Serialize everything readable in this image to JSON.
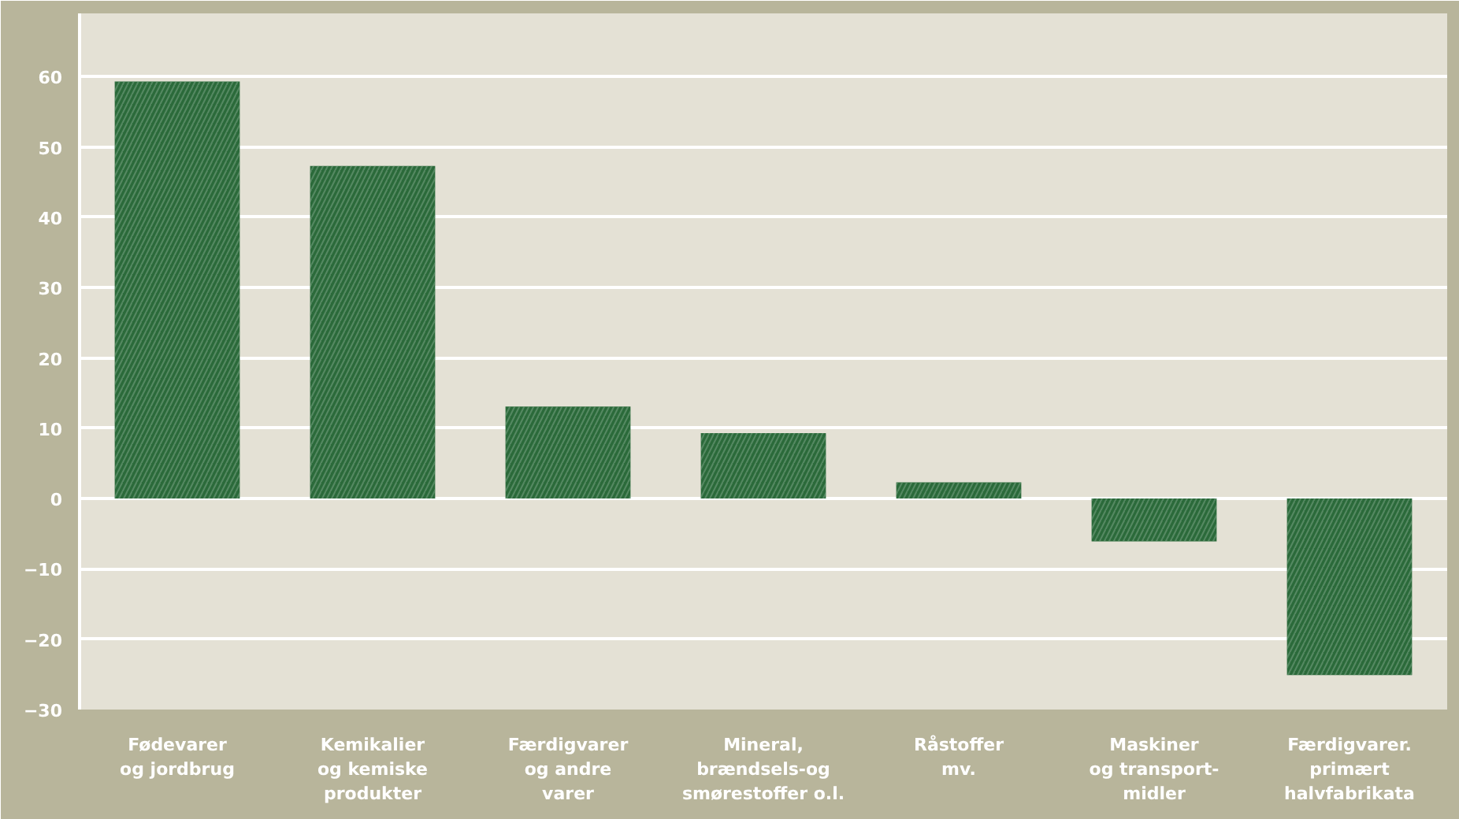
{
  "chart_data": {
    "type": "bar",
    "categories": [
      "Fødevarer\nog jordbrug",
      "Kemikalier\nog kemiske\nprodukter",
      "Færdigvarer\nog andre\nvarer",
      "Mineral,\nbrændsels-og\nsmørestoffer o.l.",
      "Råstoffer\nmv.",
      "Maskiner\nog transport-\nmidler",
      "Færdigvarer.\nprimært\nhalvfabrikata"
    ],
    "values": [
      59.3,
      47.3,
      13.1,
      9.3,
      2.3,
      -6.1,
      -25.1
    ],
    "color": "#2b6a3a",
    "ylim": [
      -30,
      69
    ],
    "yticks": [
      -30,
      -20,
      -10,
      0,
      10,
      20,
      30,
      40,
      50,
      60
    ],
    "grid": "y"
  }
}
